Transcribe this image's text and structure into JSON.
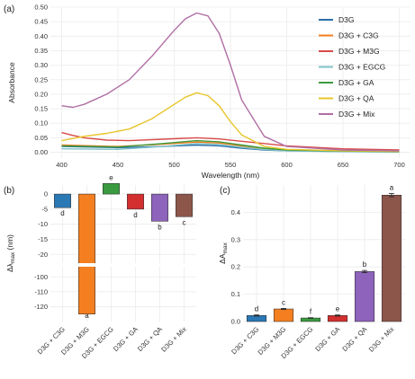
{
  "chart_data": [
    {
      "panel": "(a)",
      "type": "line",
      "xlabel": "Wavelength (nm)",
      "ylabel": "Absorbance",
      "xlim": [
        390,
        710
      ],
      "ylim": [
        -0.02,
        0.5
      ],
      "xticks": [
        400,
        450,
        500,
        550,
        600,
        650,
        700
      ],
      "yticks": [
        0.0,
        0.05,
        0.1,
        0.15,
        0.2,
        0.25,
        0.3,
        0.35,
        0.4,
        0.45,
        0.5
      ],
      "yticklabels": [
        "0.00",
        "0.05",
        "0.10",
        "0.15",
        "0.20",
        "0.25",
        "0.30",
        "0.35",
        "0.40",
        "0.45",
        "0.50"
      ],
      "legend_position": "right",
      "series": [
        {
          "name": "D3G",
          "color": "#2b6fa8",
          "x": [
            400,
            450,
            490,
            520,
            540,
            560,
            580,
            600,
            650,
            700
          ],
          "y": [
            0.02,
            0.016,
            0.02,
            0.025,
            0.022,
            0.014,
            0.008,
            0.005,
            0.003,
            0.002
          ]
        },
        {
          "name": "D3G + C3G",
          "color": "#f47f20",
          "x": [
            400,
            450,
            490,
            520,
            540,
            560,
            580,
            600,
            650,
            700
          ],
          "y": [
            0.025,
            0.02,
            0.028,
            0.035,
            0.032,
            0.022,
            0.013,
            0.008,
            0.004,
            0.002
          ]
        },
        {
          "name": "D3G + M3G",
          "color": "#d84a4a",
          "x": [
            400,
            410,
            420,
            440,
            460,
            490,
            520,
            540,
            560,
            580,
            600,
            650,
            700
          ],
          "y": [
            0.068,
            0.058,
            0.05,
            0.042,
            0.04,
            0.045,
            0.05,
            0.046,
            0.038,
            0.03,
            0.022,
            0.012,
            0.008
          ]
        },
        {
          "name": "D3G + EGCG",
          "color": "#7fc2c8",
          "x": [
            400,
            450,
            490,
            520,
            540,
            560,
            580,
            600,
            650,
            700
          ],
          "y": [
            0.012,
            0.01,
            0.02,
            0.03,
            0.027,
            0.017,
            0.009,
            0.005,
            0.002,
            0.001
          ]
        },
        {
          "name": "D3G + GA",
          "color": "#3d9a3d",
          "x": [
            400,
            450,
            490,
            520,
            540,
            560,
            580,
            600,
            650,
            700
          ],
          "y": [
            0.022,
            0.018,
            0.03,
            0.04,
            0.036,
            0.025,
            0.014,
            0.008,
            0.004,
            0.002
          ]
        },
        {
          "name": "D3G + QA",
          "color": "#e8c52a",
          "x": [
            400,
            420,
            440,
            460,
            480,
            500,
            510,
            520,
            530,
            540,
            550,
            560,
            580,
            600,
            650,
            700
          ],
          "y": [
            0.04,
            0.055,
            0.065,
            0.08,
            0.115,
            0.165,
            0.19,
            0.205,
            0.195,
            0.16,
            0.105,
            0.06,
            0.02,
            0.01,
            0.005,
            0.003
          ]
        },
        {
          "name": "D3G + Mix",
          "color": "#b06ea4",
          "x": [
            400,
            410,
            420,
            440,
            460,
            480,
            500,
            510,
            520,
            530,
            540,
            550,
            560,
            580,
            600,
            650,
            700
          ],
          "y": [
            0.16,
            0.155,
            0.165,
            0.2,
            0.25,
            0.33,
            0.42,
            0.46,
            0.48,
            0.47,
            0.41,
            0.3,
            0.18,
            0.055,
            0.02,
            0.008,
            0.005
          ]
        }
      ]
    },
    {
      "panel": "(b)",
      "type": "bar",
      "ylabel": "Δλmax (nm)",
      "ylabel_main": "Δλ",
      "ylabel_sub": "max",
      "ylabel_unit": " (nm)",
      "categories": [
        "D3G + C3G",
        "D3G + M3G",
        "D3G + EGCG",
        "D3G + GA",
        "D3G + QA",
        "D3G + Mix"
      ],
      "values": [
        -4.5,
        -125,
        3.5,
        -5,
        -9,
        -7.5
      ],
      "colors": [
        "#2a78b4",
        "#f47f20",
        "#3a9a3f",
        "#d32f2f",
        "#8d63bb",
        "#8c564b"
      ],
      "significance": [
        "d",
        "a",
        "e",
        "d",
        "b",
        "c"
      ],
      "broken_axis": {
        "lower": [
          -130,
          -95
        ],
        "upper": [
          -22,
          3
        ],
        "break_between": [
          -22,
          -95
        ]
      },
      "yticks": [
        0,
        -5,
        -10,
        -15,
        -20,
        -100,
        -110,
        -120
      ],
      "yticklabels": [
        "0",
        "-5",
        "-10",
        "-15",
        "-20",
        "-100",
        "-110",
        "-120"
      ]
    },
    {
      "panel": "(c)",
      "type": "bar",
      "ylabel": "ΔAmax",
      "ylabel_main": "ΔA",
      "ylabel_sub": "max",
      "categories": [
        "D3G + C3G",
        "D3G + M3G",
        "D3G + EGCG",
        "D3G + GA",
        "D3G + QA",
        "D3G + Mix"
      ],
      "values": [
        0.022,
        0.046,
        0.013,
        0.022,
        0.183,
        0.463
      ],
      "errors": [
        0.002,
        0.002,
        0.001,
        0.002,
        0.004,
        0.006
      ],
      "colors": [
        "#2a78b4",
        "#f47f20",
        "#3a9a3f",
        "#d32f2f",
        "#8d63bb",
        "#8c564b"
      ],
      "significance": [
        "d",
        "c",
        "f",
        "e",
        "b",
        "a"
      ],
      "ylim": [
        0,
        0.5
      ],
      "yticks": [
        0.0,
        0.1,
        0.2,
        0.3,
        0.4
      ],
      "yticklabels": [
        "0.0",
        "0.1",
        "0.2",
        "0.3",
        "0.4"
      ]
    }
  ]
}
